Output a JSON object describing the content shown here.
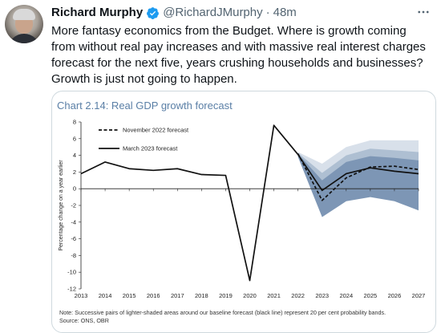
{
  "tweet": {
    "display_name": "Richard Murphy",
    "handle": "@RichardJMurphy",
    "separator": "·",
    "time": "48m",
    "text": "More fantasy economics from the Budget. Where is growth coming from without real pay increases and with massive real interest charges forecast for the next five, years crushing households and businesses? Growth is just not going to happen.",
    "more_icon": "more-icon",
    "verified_color": "#1d9bf0"
  },
  "chart_data": {
    "type": "line",
    "title": "Chart 2.14: Real GDP growth forecast",
    "ylabel": "Percentage change on a year earlier",
    "xlabel": "",
    "x": [
      2013,
      2014,
      2015,
      2016,
      2017,
      2018,
      2019,
      2020,
      2021,
      2022,
      2023,
      2024,
      2025,
      2026,
      2027
    ],
    "xlim": [
      2013,
      2027
    ],
    "ylim": [
      -12,
      8
    ],
    "yticks": [
      -12,
      -10,
      -8,
      -6,
      -4,
      -2,
      0,
      2,
      4,
      6,
      8
    ],
    "series": [
      {
        "name": "March 2023 forecast",
        "style": "solid",
        "color": "#111111",
        "x": [
          2013,
          2014,
          2015,
          2016,
          2017,
          2018,
          2019,
          2020,
          2021,
          2022,
          2023,
          2024,
          2025,
          2026,
          2027
        ],
        "values": [
          1.8,
          3.2,
          2.4,
          2.2,
          2.4,
          1.7,
          1.6,
          -11.0,
          7.6,
          4.1,
          -0.2,
          1.8,
          2.5,
          2.1,
          1.8
        ]
      },
      {
        "name": "November 2022 forecast",
        "style": "dashed",
        "color": "#111111",
        "x": [
          2022,
          2023,
          2024,
          2025,
          2026,
          2027
        ],
        "values": [
          4.2,
          -1.4,
          1.3,
          2.6,
          2.7,
          2.3
        ]
      }
    ],
    "fan_bands": {
      "x": [
        2022,
        2023,
        2024,
        2025,
        2026,
        2027
      ],
      "upper": [
        [
          4.4,
          3.0,
          5.0,
          5.8,
          5.8,
          5.8
        ],
        [
          4.3,
          1.9,
          4.0,
          4.8,
          4.6,
          4.4
        ],
        [
          4.2,
          1.0,
          3.2,
          3.9,
          3.7,
          3.4
        ]
      ],
      "lower": [
        [
          4.0,
          -1.4,
          0.4,
          1.1,
          0.6,
          0.2
        ],
        [
          3.9,
          -2.3,
          -0.5,
          0.2,
          -0.3,
          -0.8
        ],
        [
          3.8,
          -3.4,
          -1.5,
          -1.0,
          -1.5,
          -2.6
        ]
      ],
      "colors": [
        "#d8e0ea",
        "#aebfd2",
        "#7d96b5"
      ]
    },
    "legend_position": "top-left",
    "grid": false,
    "note": "Note: Successive pairs of lighter-shaded areas around our baseline forecast (black line) represent 20 per cent probability bands.",
    "source": "Source: ONS, OBR"
  }
}
